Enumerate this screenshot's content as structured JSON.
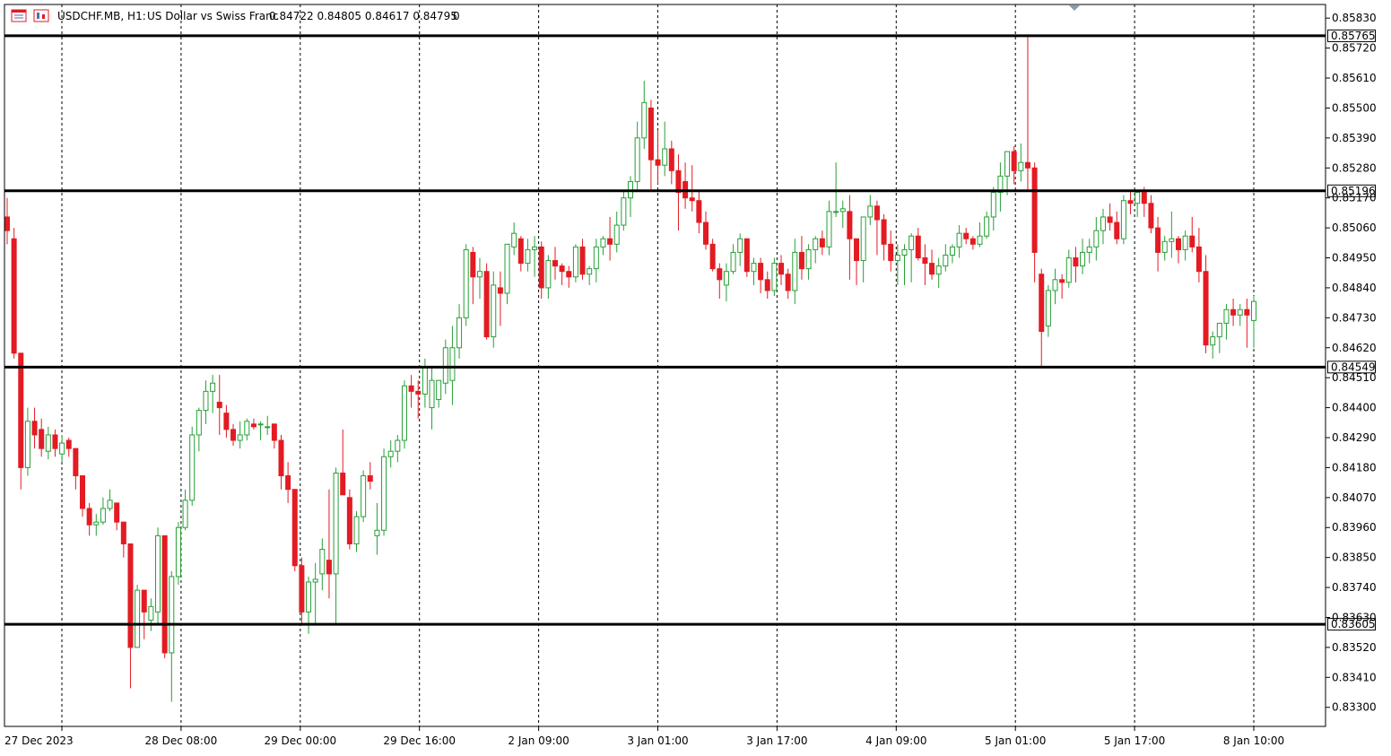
{
  "header": {
    "symbol_label": "USDCHF.MB, H1:",
    "description": "US Dollar vs Swiss Franc",
    "ohlc": "0.84722 0.84805 0.84617 0.84795",
    "extra": "0",
    "icons": [
      "chart-window-icon",
      "chart-type-icon"
    ]
  },
  "colors": {
    "bull": "#26a037",
    "bear": "#e31b23",
    "grid": "#000000",
    "level_line": "#000000",
    "background": "#ffffff"
  },
  "chart_data": {
    "type": "candlestick",
    "symbol": "USDCHF.MB",
    "timeframe": "H1",
    "ylim": [
      0.8323,
      0.8588
    ],
    "y_ticks": [
      "0.85830",
      "0.85720",
      "0.85610",
      "0.85500",
      "0.85390",
      "0.85280",
      "0.85170",
      "0.85060",
      "0.84950",
      "0.84840",
      "0.84730",
      "0.84620",
      "0.84510",
      "0.84400",
      "0.84290",
      "0.84180",
      "0.84070",
      "0.83960",
      "0.83850",
      "0.83740",
      "0.83630",
      "0.83520",
      "0.83410",
      "0.83300"
    ],
    "x_ticks": [
      "27 Dec 2023",
      "28 Dec 08:00",
      "29 Dec 00:00",
      "29 Dec 16:00",
      "2 Jan 09:00",
      "3 Jan 01:00",
      "3 Jan 17:00",
      "4 Jan 09:00",
      "5 Jan 01:00",
      "5 Jan 17:00",
      "8 Jan 10:00"
    ],
    "horizontal_levels": [
      "0.85765",
      "0.85196",
      "0.84549",
      "0.83605"
    ],
    "grid": "vertical-dashed",
    "candles": [
      [
        0.851,
        0.8517,
        0.85,
        0.8505
      ],
      [
        0.8502,
        0.8506,
        0.8458,
        0.846
      ],
      [
        0.846,
        0.846,
        0.841,
        0.8418
      ],
      [
        0.8418,
        0.844,
        0.8415,
        0.8435
      ],
      [
        0.8435,
        0.844,
        0.8425,
        0.843
      ],
      [
        0.8432,
        0.8436,
        0.8422,
        0.8425
      ],
      [
        0.8424,
        0.8433,
        0.8421,
        0.843
      ],
      [
        0.843,
        0.8432,
        0.8422,
        0.8425
      ],
      [
        0.8423,
        0.843,
        0.842,
        0.8427
      ],
      [
        0.8428,
        0.8429,
        0.8422,
        0.8425
      ],
      [
        0.8425,
        0.8425,
        0.841,
        0.8415
      ],
      [
        0.8415,
        0.8415,
        0.84,
        0.8403
      ],
      [
        0.8403,
        0.8405,
        0.8393,
        0.8397
      ],
      [
        0.8397,
        0.8401,
        0.8393,
        0.8398
      ],
      [
        0.8398,
        0.8407,
        0.8397,
        0.8403
      ],
      [
        0.8403,
        0.841,
        0.8402,
        0.8406
      ],
      [
        0.8405,
        0.8405,
        0.8395,
        0.8398
      ],
      [
        0.8398,
        0.8398,
        0.8385,
        0.839
      ],
      [
        0.839,
        0.839,
        0.8337,
        0.8352
      ],
      [
        0.8352,
        0.8375,
        0.8352,
        0.8373
      ],
      [
        0.8373,
        0.8373,
        0.8355,
        0.8365
      ],
      [
        0.8362,
        0.837,
        0.8358,
        0.8367
      ],
      [
        0.8365,
        0.8396,
        0.836,
        0.8393
      ],
      [
        0.8393,
        0.8393,
        0.8348,
        0.835
      ],
      [
        0.835,
        0.838,
        0.8332,
        0.8378
      ],
      [
        0.8378,
        0.8398,
        0.8375,
        0.8396
      ],
      [
        0.8396,
        0.841,
        0.8395,
        0.8406
      ],
      [
        0.8406,
        0.8433,
        0.8404,
        0.843
      ],
      [
        0.843,
        0.844,
        0.8424,
        0.8439
      ],
      [
        0.8439,
        0.845,
        0.8434,
        0.8446
      ],
      [
        0.8446,
        0.8452,
        0.8438,
        0.8449
      ],
      [
        0.8442,
        0.8452,
        0.843,
        0.844
      ],
      [
        0.8438,
        0.8441,
        0.8429,
        0.8432
      ],
      [
        0.8432,
        0.8434,
        0.8426,
        0.8428
      ],
      [
        0.8428,
        0.8435,
        0.8425,
        0.843
      ],
      [
        0.843,
        0.8436,
        0.8428,
        0.8435
      ],
      [
        0.8434,
        0.8436,
        0.8432,
        0.8433
      ],
      [
        0.8434,
        0.8435,
        0.8428,
        0.8434
      ],
      [
        0.8433,
        0.8437,
        0.843,
        0.8433
      ],
      [
        0.8434,
        0.8434,
        0.8425,
        0.8428
      ],
      [
        0.8428,
        0.843,
        0.841,
        0.8415
      ],
      [
        0.8415,
        0.842,
        0.8405,
        0.841
      ],
      [
        0.841,
        0.841,
        0.838,
        0.8382
      ],
      [
        0.8382,
        0.8385,
        0.836,
        0.8365
      ],
      [
        0.8365,
        0.8378,
        0.8357,
        0.8376
      ],
      [
        0.8376,
        0.8383,
        0.836,
        0.8377
      ],
      [
        0.8379,
        0.8392,
        0.8373,
        0.8388
      ],
      [
        0.8384,
        0.841,
        0.837,
        0.8379
      ],
      [
        0.8379,
        0.8418,
        0.8361,
        0.8416
      ],
      [
        0.8416,
        0.8432,
        0.841,
        0.8408
      ],
      [
        0.8407,
        0.841,
        0.8388,
        0.839
      ],
      [
        0.839,
        0.8402,
        0.8387,
        0.84
      ],
      [
        0.84,
        0.8417,
        0.8398,
        0.8415
      ],
      [
        0.8415,
        0.842,
        0.841,
        0.8413
      ],
      [
        0.8393,
        0.8405,
        0.8386,
        0.8395
      ],
      [
        0.8395,
        0.8425,
        0.8393,
        0.8422
      ],
      [
        0.8422,
        0.8428,
        0.8418,
        0.8424
      ],
      [
        0.8424,
        0.843,
        0.842,
        0.8428
      ],
      [
        0.8428,
        0.845,
        0.8425,
        0.8448
      ],
      [
        0.8448,
        0.8452,
        0.844,
        0.8446
      ],
      [
        0.8446,
        0.845,
        0.8436,
        0.8445
      ],
      [
        0.8445,
        0.8458,
        0.844,
        0.8455
      ],
      [
        0.844,
        0.8455,
        0.8432,
        0.845
      ],
      [
        0.8443,
        0.845,
        0.844,
        0.845
      ],
      [
        0.8449,
        0.8465,
        0.8445,
        0.8462
      ],
      [
        0.845,
        0.847,
        0.8441,
        0.8462
      ],
      [
        0.8462,
        0.8478,
        0.8458,
        0.8473
      ],
      [
        0.8473,
        0.85,
        0.847,
        0.8498
      ],
      [
        0.8497,
        0.8499,
        0.8478,
        0.8488
      ],
      [
        0.8488,
        0.8495,
        0.848,
        0.849
      ],
      [
        0.849,
        0.8493,
        0.8465,
        0.8466
      ],
      [
        0.8466,
        0.849,
        0.8462,
        0.8485
      ],
      [
        0.8484,
        0.849,
        0.847,
        0.8482
      ],
      [
        0.8482,
        0.85,
        0.8478,
        0.85
      ],
      [
        0.8499,
        0.8508,
        0.8496,
        0.8504
      ],
      [
        0.8502,
        0.8503,
        0.849,
        0.8493
      ],
      [
        0.8493,
        0.8502,
        0.849,
        0.8498
      ],
      [
        0.8498,
        0.8503,
        0.8488,
        0.8499
      ],
      [
        0.8499,
        0.8501,
        0.848,
        0.8484
      ],
      [
        0.8484,
        0.8496,
        0.848,
        0.8494
      ],
      [
        0.8494,
        0.8499,
        0.8487,
        0.8492
      ],
      [
        0.8492,
        0.8493,
        0.8485,
        0.849
      ],
      [
        0.849,
        0.8492,
        0.8484,
        0.8488
      ],
      [
        0.8488,
        0.85,
        0.8486,
        0.8499
      ],
      [
        0.8499,
        0.8502,
        0.8487,
        0.8489
      ],
      [
        0.8489,
        0.8492,
        0.8485,
        0.8491
      ],
      [
        0.8491,
        0.8502,
        0.8486,
        0.8499
      ],
      [
        0.8499,
        0.8503,
        0.8496,
        0.8502
      ],
      [
        0.8502,
        0.851,
        0.8494,
        0.85
      ],
      [
        0.85,
        0.8512,
        0.8497,
        0.8507
      ],
      [
        0.8507,
        0.852,
        0.8505,
        0.8517
      ],
      [
        0.8517,
        0.8525,
        0.851,
        0.8523
      ],
      [
        0.8523,
        0.8545,
        0.852,
        0.8539
      ],
      [
        0.8539,
        0.856,
        0.8535,
        0.8552
      ],
      [
        0.855,
        0.8553,
        0.852,
        0.8531
      ],
      [
        0.8531,
        0.8542,
        0.8522,
        0.8529
      ],
      [
        0.8529,
        0.8545,
        0.8525,
        0.8535
      ],
      [
        0.8535,
        0.8538,
        0.8522,
        0.8527
      ],
      [
        0.8527,
        0.8533,
        0.8505,
        0.8519
      ],
      [
        0.8523,
        0.853,
        0.8513,
        0.8517
      ],
      [
        0.8517,
        0.8529,
        0.8512,
        0.8516
      ],
      [
        0.8516,
        0.852,
        0.8504,
        0.8508
      ],
      [
        0.8508,
        0.8512,
        0.8498,
        0.85
      ],
      [
        0.85,
        0.8502,
        0.849,
        0.8491
      ],
      [
        0.8491,
        0.8493,
        0.848,
        0.8487
      ],
      [
        0.8485,
        0.8493,
        0.8479,
        0.849
      ],
      [
        0.849,
        0.85,
        0.8489,
        0.8497
      ],
      [
        0.8497,
        0.8504,
        0.8492,
        0.8502
      ],
      [
        0.8502,
        0.8502,
        0.8488,
        0.849
      ],
      [
        0.849,
        0.8495,
        0.8485,
        0.8493
      ],
      [
        0.8493,
        0.8495,
        0.8482,
        0.8487
      ],
      [
        0.8487,
        0.849,
        0.848,
        0.8483
      ],
      [
        0.8483,
        0.8495,
        0.8481,
        0.8493
      ],
      [
        0.8493,
        0.8496,
        0.8485,
        0.8489
      ],
      [
        0.8489,
        0.8491,
        0.848,
        0.8483
      ],
      [
        0.8483,
        0.8502,
        0.8478,
        0.8497
      ],
      [
        0.8497,
        0.8503,
        0.8487,
        0.8491
      ],
      [
        0.8491,
        0.85,
        0.8487,
        0.8498
      ],
      [
        0.8498,
        0.8503,
        0.8493,
        0.8502
      ],
      [
        0.8502,
        0.8505,
        0.8496,
        0.8499
      ],
      [
        0.8499,
        0.8516,
        0.8496,
        0.8512
      ],
      [
        0.8512,
        0.853,
        0.851,
        0.8512
      ],
      [
        0.8512,
        0.8516,
        0.8506,
        0.8513
      ],
      [
        0.8512,
        0.8518,
        0.8487,
        0.8502
      ],
      [
        0.8502,
        0.8502,
        0.8485,
        0.8494
      ],
      [
        0.8494,
        0.851,
        0.8486,
        0.851
      ],
      [
        0.851,
        0.8518,
        0.8507,
        0.8514
      ],
      [
        0.8514,
        0.8516,
        0.8496,
        0.8509
      ],
      [
        0.8509,
        0.8511,
        0.8494,
        0.85
      ],
      [
        0.85,
        0.8505,
        0.849,
        0.8494
      ],
      [
        0.8494,
        0.85,
        0.8485,
        0.8496
      ],
      [
        0.8496,
        0.85,
        0.8485,
        0.8498
      ],
      [
        0.8498,
        0.8504,
        0.8486,
        0.8503
      ],
      [
        0.8503,
        0.8506,
        0.8494,
        0.8495
      ],
      [
        0.8495,
        0.85,
        0.8485,
        0.8493
      ],
      [
        0.8493,
        0.8498,
        0.8487,
        0.8489
      ],
      [
        0.8489,
        0.8495,
        0.8484,
        0.8492
      ],
      [
        0.8492,
        0.85,
        0.849,
        0.8496
      ],
      [
        0.8496,
        0.85,
        0.8493,
        0.8499
      ],
      [
        0.8499,
        0.8507,
        0.8495,
        0.8504
      ],
      [
        0.8504,
        0.8506,
        0.85,
        0.8502
      ],
      [
        0.8502,
        0.8503,
        0.8498,
        0.85
      ],
      [
        0.85,
        0.8508,
        0.8499,
        0.8503
      ],
      [
        0.8503,
        0.8512,
        0.8502,
        0.851
      ],
      [
        0.851,
        0.8521,
        0.8505,
        0.8519
      ],
      [
        0.8519,
        0.853,
        0.8512,
        0.8525
      ],
      [
        0.8525,
        0.8533,
        0.8518,
        0.8534
      ],
      [
        0.8534,
        0.8536,
        0.8522,
        0.8527
      ],
      [
        0.8527,
        0.8537,
        0.8523,
        0.853
      ],
      [
        0.853,
        0.8576,
        0.852,
        0.8528
      ],
      [
        0.8528,
        0.853,
        0.8486,
        0.8497
      ],
      [
        0.8489,
        0.8491,
        0.8455,
        0.8468
      ],
      [
        0.847,
        0.8485,
        0.8466,
        0.8483
      ],
      [
        0.8483,
        0.8491,
        0.8478,
        0.8487
      ],
      [
        0.8487,
        0.8489,
        0.848,
        0.8486
      ],
      [
        0.8486,
        0.8498,
        0.8484,
        0.8495
      ],
      [
        0.8495,
        0.8499,
        0.8486,
        0.8492
      ],
      [
        0.8492,
        0.8502,
        0.8489,
        0.8497
      ],
      [
        0.8497,
        0.8502,
        0.8493,
        0.8499
      ],
      [
        0.8499,
        0.851,
        0.8494,
        0.8505
      ],
      [
        0.8505,
        0.8513,
        0.85,
        0.851
      ],
      [
        0.851,
        0.8515,
        0.8505,
        0.8508
      ],
      [
        0.8508,
        0.8512,
        0.85,
        0.8502
      ],
      [
        0.8502,
        0.8518,
        0.85,
        0.8516
      ],
      [
        0.8516,
        0.852,
        0.8511,
        0.8515
      ],
      [
        0.8515,
        0.852,
        0.851,
        0.8519
      ],
      [
        0.8519,
        0.8521,
        0.851,
        0.8515
      ],
      [
        0.8515,
        0.8518,
        0.8504,
        0.8506
      ],
      [
        0.8506,
        0.851,
        0.849,
        0.8497
      ],
      [
        0.8497,
        0.8503,
        0.8494,
        0.8501
      ],
      [
        0.8501,
        0.8512,
        0.8495,
        0.8502
      ],
      [
        0.8502,
        0.8503,
        0.8493,
        0.8498
      ],
      [
        0.8498,
        0.8505,
        0.8494,
        0.8503
      ],
      [
        0.8503,
        0.851,
        0.8497,
        0.8499
      ],
      [
        0.8499,
        0.8506,
        0.8486,
        0.849
      ],
      [
        0.849,
        0.8496,
        0.846,
        0.8463
      ],
      [
        0.8463,
        0.8468,
        0.8458,
        0.8466
      ],
      [
        0.8466,
        0.847,
        0.846,
        0.8471
      ],
      [
        0.8471,
        0.8478,
        0.8465,
        0.8476
      ],
      [
        0.8476,
        0.848,
        0.847,
        0.8474
      ],
      [
        0.8474,
        0.8478,
        0.847,
        0.8476
      ],
      [
        0.8476,
        0.848,
        0.8462,
        0.8474
      ],
      [
        0.8472,
        0.8481,
        0.8462,
        0.8479
      ]
    ]
  }
}
